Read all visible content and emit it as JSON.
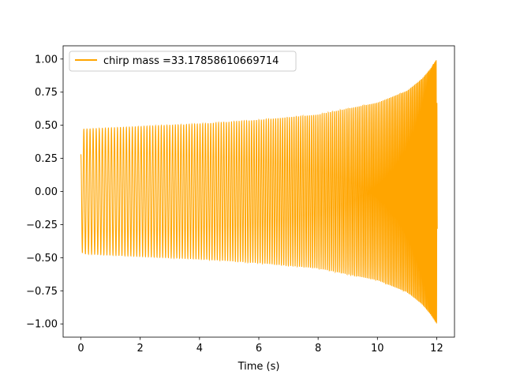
{
  "chart_data": {
    "type": "line",
    "title": "",
    "xlabel": "Time (s)",
    "ylabel": "",
    "xlim": [
      -0.6,
      12.6
    ],
    "ylim": [
      -1.1,
      1.1
    ],
    "x_ticks": [
      0,
      2,
      4,
      6,
      8,
      10,
      12
    ],
    "x_tick_labels": [
      "0",
      "2",
      "4",
      "6",
      "8",
      "10",
      "12"
    ],
    "y_ticks": [
      -1.0,
      -0.75,
      -0.5,
      -0.25,
      0.0,
      0.25,
      0.5,
      0.75,
      1.0
    ],
    "y_tick_labels": [
      "−1.00",
      "−0.75",
      "−0.50",
      "−0.25",
      "0.00",
      "0.25",
      "0.50",
      "0.75",
      "1.00"
    ],
    "grid": false,
    "legend_position": "upper-left",
    "series": [
      {
        "name": "chirp mass =33.17858610669714",
        "color": "#ffa500",
        "description_points": {
          "t": [
            0.0,
            0.05,
            2,
            4,
            6,
            8,
            10,
            11,
            11.5,
            11.8,
            12.0,
            12.02
          ],
          "amplitude": [
            0.3,
            0.47,
            0.49,
            0.51,
            0.54,
            0.58,
            0.67,
            0.76,
            0.85,
            0.93,
            1.0,
            0.6
          ]
        }
      }
    ]
  }
}
